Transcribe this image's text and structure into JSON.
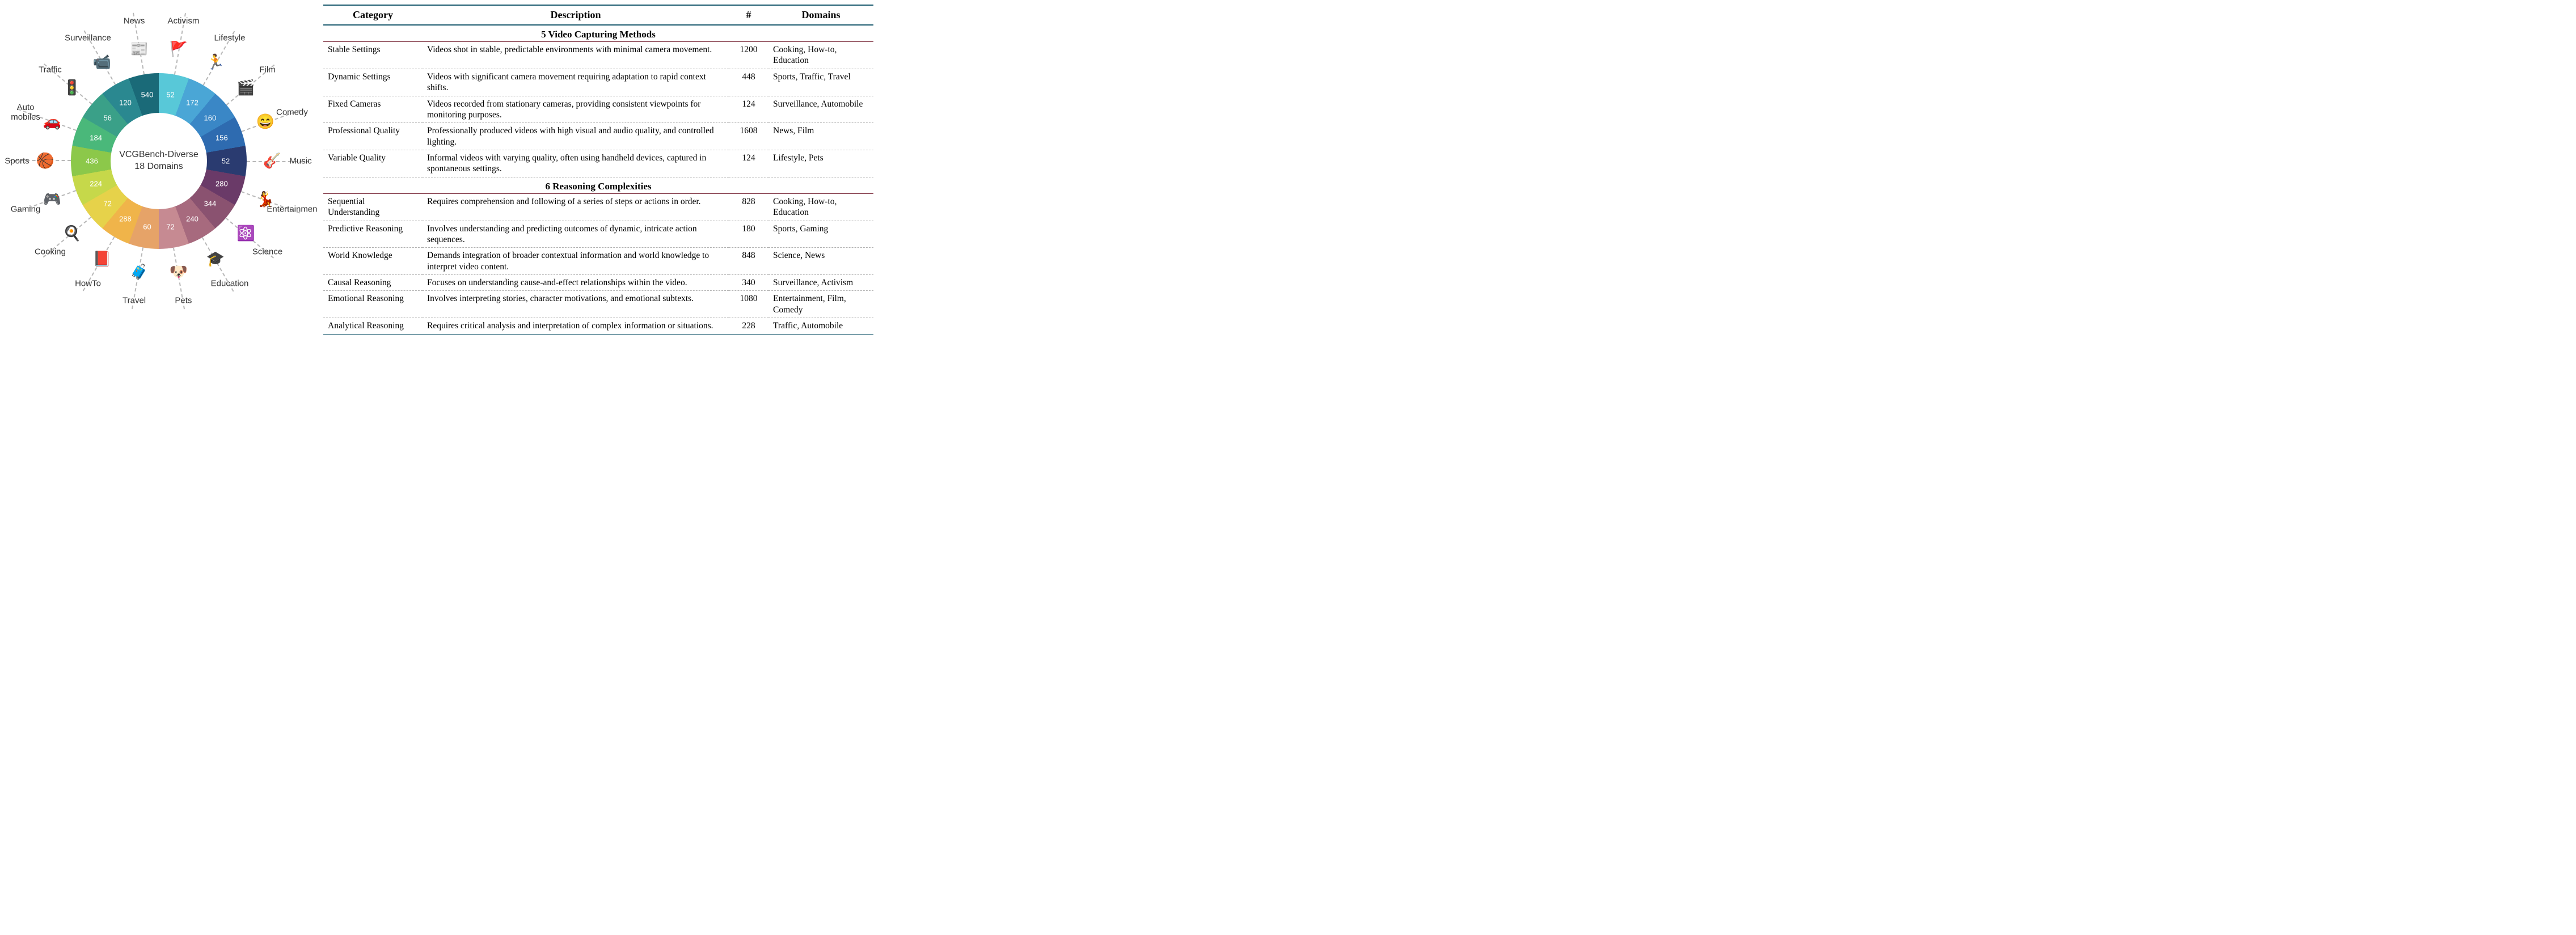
{
  "chart": {
    "title_line1": "VCGBench-Diverse",
    "title_line2": "18 Domains",
    "center_fontsize": 16,
    "donut_outer_r": 155,
    "donut_inner_r": 85,
    "spoke_inner_r": 155,
    "spoke_outer_r": 265,
    "label_r": 118,
    "icon_r": 200,
    "domain_label_r": 250,
    "background_color": "#ffffff",
    "spoke_color": "#b8b8b8",
    "label_fontsize": 15,
    "value_fontsize": 13,
    "value_color": "#ffffff",
    "slices": [
      {
        "name": "Activism",
        "value": 52,
        "color": "#58c8d8",
        "icon": "🚩"
      },
      {
        "name": "Lifestyle",
        "value": 172,
        "color": "#4aa6d6",
        "icon": "🏃"
      },
      {
        "name": "Film",
        "value": 160,
        "color": "#3a87c6",
        "icon": "🎬"
      },
      {
        "name": "Comedy",
        "value": 156,
        "color": "#2e6bb0",
        "icon": "😄"
      },
      {
        "name": "Music",
        "value": 52,
        "color": "#2a3b70",
        "icon": "🎸"
      },
      {
        "name": "Entertainment",
        "value": 280,
        "color": "#6a3a68",
        "icon": "💃"
      },
      {
        "name": "Science",
        "value": 344,
        "color": "#8a5270",
        "icon": "⚛️"
      },
      {
        "name": "Education",
        "value": 240,
        "color": "#a76a7e",
        "icon": "🎓"
      },
      {
        "name": "Pets",
        "value": 72,
        "color": "#c68a92",
        "icon": "🐶"
      },
      {
        "name": "Travel",
        "value": 60,
        "color": "#e6a368",
        "icon": "🧳"
      },
      {
        "name": "HowTo",
        "value": 288,
        "color": "#f0b44a",
        "icon": "📕"
      },
      {
        "name": "Cooking",
        "value": 72,
        "color": "#e6d24a",
        "icon": "🍳"
      },
      {
        "name": "Gaming",
        "value": 224,
        "color": "#c6d84a",
        "icon": "🎮"
      },
      {
        "name": "Sports",
        "value": 436,
        "color": "#8cc84a",
        "icon": "🏀"
      },
      {
        "name": "Automobiles",
        "value": 184,
        "color": "#4ab87a",
        "icon": "🚗"
      },
      {
        "name": "Traffic",
        "value": 56,
        "color": "#3aa088",
        "icon": "🚦"
      },
      {
        "name": "Surveillance",
        "value": 120,
        "color": "#2a8890",
        "icon": "📹"
      },
      {
        "name": "News",
        "value": 540,
        "color": "#1a6a78",
        "icon": "📰"
      }
    ]
  },
  "table": {
    "headers": {
      "category": "Category",
      "description": "Description",
      "count": "#",
      "domains": "Domains"
    },
    "header_border_color": "#1a5a6e",
    "section_border_color": "#7a2a3a",
    "row_border_color": "#b0b0b0",
    "header_fontsize": 18,
    "section_fontsize": 17,
    "body_fontsize": 15.5,
    "col_widths": {
      "category": 175,
      "count": 70,
      "domains": 185
    },
    "sections": [
      {
        "title": "5 Video Capturing Methods",
        "rows": [
          {
            "category": "Stable Settings",
            "description": "Videos shot in stable, predictable environments with minimal camera movement.",
            "count": 1200,
            "domains": "Cooking, How-to, Education"
          },
          {
            "category": "Dynamic Settings",
            "description": "Videos with significant camera movement requiring adaptation to rapid context shifts.",
            "count": 448,
            "domains": "Sports, Traffic, Travel"
          },
          {
            "category": "Fixed Cameras",
            "description": "Videos recorded from stationary cameras, providing consistent viewpoints for monitoring purposes.",
            "count": 124,
            "domains": "Surveillance, Automobile"
          },
          {
            "category": "Professional Quality",
            "description": "Professionally produced videos with high visual and audio quality, and controlled lighting.",
            "count": 1608,
            "domains": "News, Film"
          },
          {
            "category": "Variable Quality",
            "description": "Informal videos with varying quality, often using handheld devices, captured in spontaneous settings.",
            "count": 124,
            "domains": "Lifestyle, Pets"
          }
        ]
      },
      {
        "title": "6 Reasoning Complexities",
        "rows": [
          {
            "category": "Sequential Understanding",
            "description": "Requires comprehension and following of a series of steps or actions in order.",
            "count": 828,
            "domains": "Cooking, How-to, Education"
          },
          {
            "category": "Predictive Reasoning",
            "description": "Involves understanding and predicting outcomes of dynamic, intricate action sequences.",
            "count": 180,
            "domains": "Sports, Gaming"
          },
          {
            "category": "World Knowledge",
            "description": "Demands integration of broader contextual information and world knowledge to interpret video content.",
            "count": 848,
            "domains": "Science, News"
          },
          {
            "category": "Causal Reasoning",
            "description": "Focuses on understanding cause-and-effect relationships within the video.",
            "count": 340,
            "domains": "Surveillance, Activism"
          },
          {
            "category": "Emotional Reasoning",
            "description": "Involves interpreting stories, character motivations, and emotional subtexts.",
            "count": 1080,
            "domains": "Entertainment, Film, Comedy"
          },
          {
            "category": "Analytical Reasoning",
            "description": "Requires critical analysis and interpretation of complex information or situations.",
            "count": 228,
            "domains": "Traffic, Automobile"
          }
        ]
      }
    ]
  }
}
